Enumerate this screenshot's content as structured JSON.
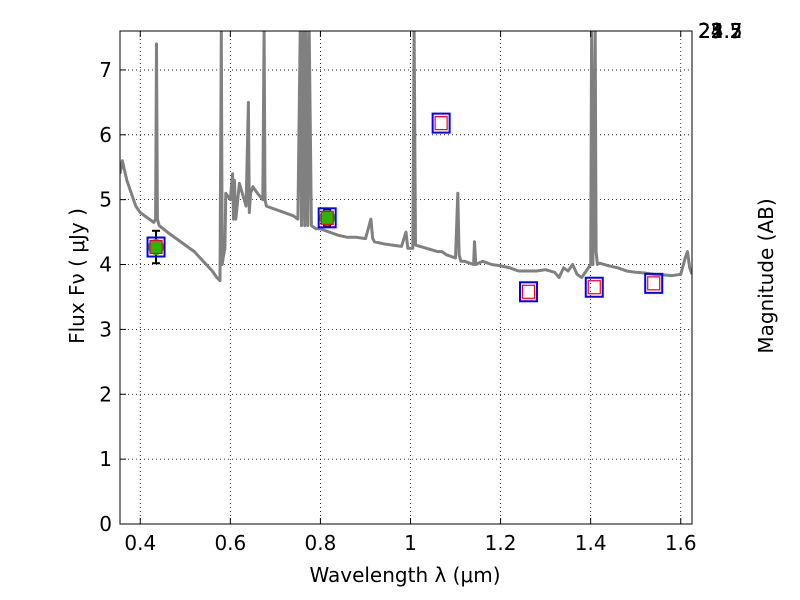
{
  "chart_data": {
    "type": "scatter",
    "title": "",
    "xlabel": "Wavelength  λ (μm)",
    "ylabel": "Flux  Fν  ( μJy )",
    "y2label": "Magnitude (AB)",
    "xlim": [
      0.355,
      1.625
    ],
    "ylim": [
      0,
      7.6
    ],
    "grid": true,
    "x_ticks": [
      "0.4",
      "0.6",
      "0.8",
      "1",
      "1.2",
      "1.4",
      "1.6"
    ],
    "x_tick_values": [
      0.4,
      0.6,
      0.8,
      1.0,
      1.2,
      1.4,
      1.6
    ],
    "y_ticks": [
      "0",
      "1",
      "2",
      "3",
      "4",
      "5",
      "6",
      "7"
    ],
    "y_tick_values": [
      0,
      1,
      2,
      3,
      4,
      5,
      6,
      7
    ],
    "mag_ticks": [
      "21.7",
      "22",
      "22.2",
      "22.5",
      "23",
      "23.5",
      "24",
      "25"
    ],
    "mag_tick_values": [
      21.7,
      22.0,
      22.2,
      22.5,
      23.0,
      23.5,
      24.0,
      25.0
    ],
    "colors": {
      "model": "#808080",
      "observed_fill": "#2db400",
      "box_outer": "#0000ff",
      "box_inner": "#ff0000"
    },
    "model_spectrum": {
      "x": [
        0.355,
        0.36,
        0.37,
        0.38,
        0.39,
        0.4,
        0.41,
        0.42,
        0.43,
        0.434,
        0.436,
        0.438,
        0.442,
        0.46,
        0.48,
        0.5,
        0.52,
        0.54,
        0.56,
        0.57,
        0.577,
        0.58,
        0.582,
        0.584,
        0.588,
        0.59,
        0.6,
        0.605,
        0.607,
        0.609,
        0.612,
        0.62,
        0.635,
        0.64,
        0.642,
        0.645,
        0.65,
        0.66,
        0.672,
        0.675,
        0.677,
        0.68,
        0.7,
        0.72,
        0.74,
        0.75,
        0.755,
        0.758,
        0.762,
        0.765,
        0.768,
        0.772,
        0.775,
        0.78,
        0.79,
        0.8,
        0.82,
        0.84,
        0.86,
        0.88,
        0.9,
        0.912,
        0.916,
        0.92,
        0.94,
        0.96,
        0.98,
        0.99,
        0.994,
        0.998,
        1.005,
        1.008,
        1.011,
        1.06,
        1.07,
        1.08,
        1.1,
        1.105,
        1.108,
        1.112,
        1.12,
        1.14,
        1.142,
        1.145,
        1.16,
        1.18,
        1.2,
        1.22,
        1.24,
        1.26,
        1.28,
        1.3,
        1.32,
        1.33,
        1.34,
        1.35,
        1.36,
        1.37,
        1.38,
        1.39,
        1.4,
        1.402,
        1.405,
        1.41,
        1.412,
        1.415,
        1.42,
        1.44,
        1.46,
        1.48,
        1.5,
        1.52,
        1.54,
        1.56,
        1.58,
        1.6,
        1.61,
        1.615,
        1.62,
        1.625
      ],
      "y": [
        5.4,
        5.6,
        5.3,
        5.1,
        4.9,
        4.8,
        4.75,
        4.7,
        4.65,
        4.7,
        7.4,
        4.7,
        4.6,
        4.5,
        4.4,
        4.3,
        4.2,
        4.05,
        3.9,
        3.8,
        3.75,
        7.6,
        4.0,
        4.1,
        4.25,
        5.1,
        5.0,
        5.4,
        4.7,
        5.3,
        4.7,
        5.25,
        4.9,
        6.5,
        4.8,
        5.1,
        5.2,
        5.1,
        5.0,
        7.6,
        5.0,
        4.9,
        4.85,
        4.8,
        4.75,
        4.7,
        7.6,
        4.6,
        7.6,
        4.6,
        7.6,
        4.6,
        7.6,
        4.6,
        4.55,
        4.55,
        4.5,
        4.45,
        4.42,
        4.42,
        4.4,
        4.7,
        4.4,
        4.35,
        4.32,
        4.3,
        4.28,
        4.5,
        4.25,
        4.25,
        4.25,
        7.6,
        4.3,
        4.2,
        4.2,
        4.15,
        4.1,
        5.1,
        4.15,
        4.05,
        4.05,
        4.0,
        4.35,
        4.0,
        4.05,
        4.0,
        3.98,
        3.95,
        3.9,
        3.9,
        3.9,
        3.92,
        3.88,
        3.8,
        3.95,
        3.9,
        4.0,
        3.85,
        3.8,
        3.9,
        4.0,
        7.6,
        4.0,
        7.6,
        4.2,
        4.0,
        4.02,
        3.98,
        3.95,
        3.9,
        3.88,
        3.87,
        3.85,
        3.84,
        3.83,
        3.85,
        4.1,
        4.2,
        3.95,
        3.85
      ]
    },
    "observed": {
      "name": "",
      "points": [
        {
          "x": 0.435,
          "y": 4.27,
          "yerr": 0.25
        },
        {
          "x": 0.815,
          "y": 4.72,
          "yerr": 0.12
        }
      ]
    },
    "model_boxes": {
      "points": [
        {
          "x": 0.435,
          "y": 4.27
        },
        {
          "x": 0.815,
          "y": 4.72
        },
        {
          "x": 1.068,
          "y": 6.18
        },
        {
          "x": 1.262,
          "y": 3.58
        },
        {
          "x": 1.408,
          "y": 3.65
        },
        {
          "x": 1.54,
          "y": 3.71
        }
      ]
    }
  }
}
